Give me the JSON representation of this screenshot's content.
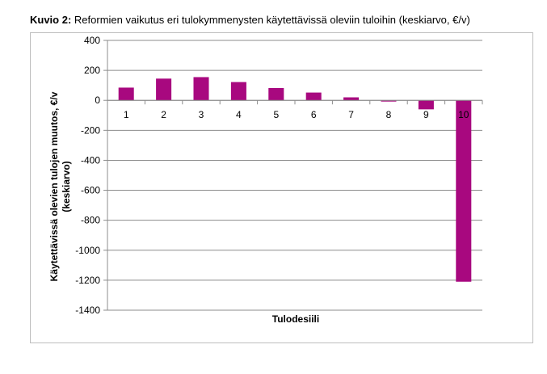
{
  "chart_data": {
    "type": "bar",
    "title_bold": "Kuvio 2:",
    "title": "Reformien vaikutus eri tulokymmenysten käytettävissä oleviin tuloihin (keskiarvo, €/v)",
    "xlabel": "Tulodesiili",
    "ylabel_line1": "Käytettävissä olevien tulojen muutos, €/v",
    "ylabel_line2": "(keskiarvo)",
    "categories": [
      "1",
      "2",
      "3",
      "4",
      "5",
      "6",
      "7",
      "8",
      "9",
      "10"
    ],
    "values": [
      85,
      145,
      155,
      122,
      82,
      52,
      20,
      -8,
      -60,
      -1210
    ],
    "ylim": [
      -1400,
      400
    ],
    "yticks": [
      "400",
      "200",
      "0",
      "-200",
      "-400",
      "-600",
      "-800",
      "-1000",
      "-1200",
      "-1400"
    ],
    "grid": true,
    "bar_color": "#a8087f"
  }
}
